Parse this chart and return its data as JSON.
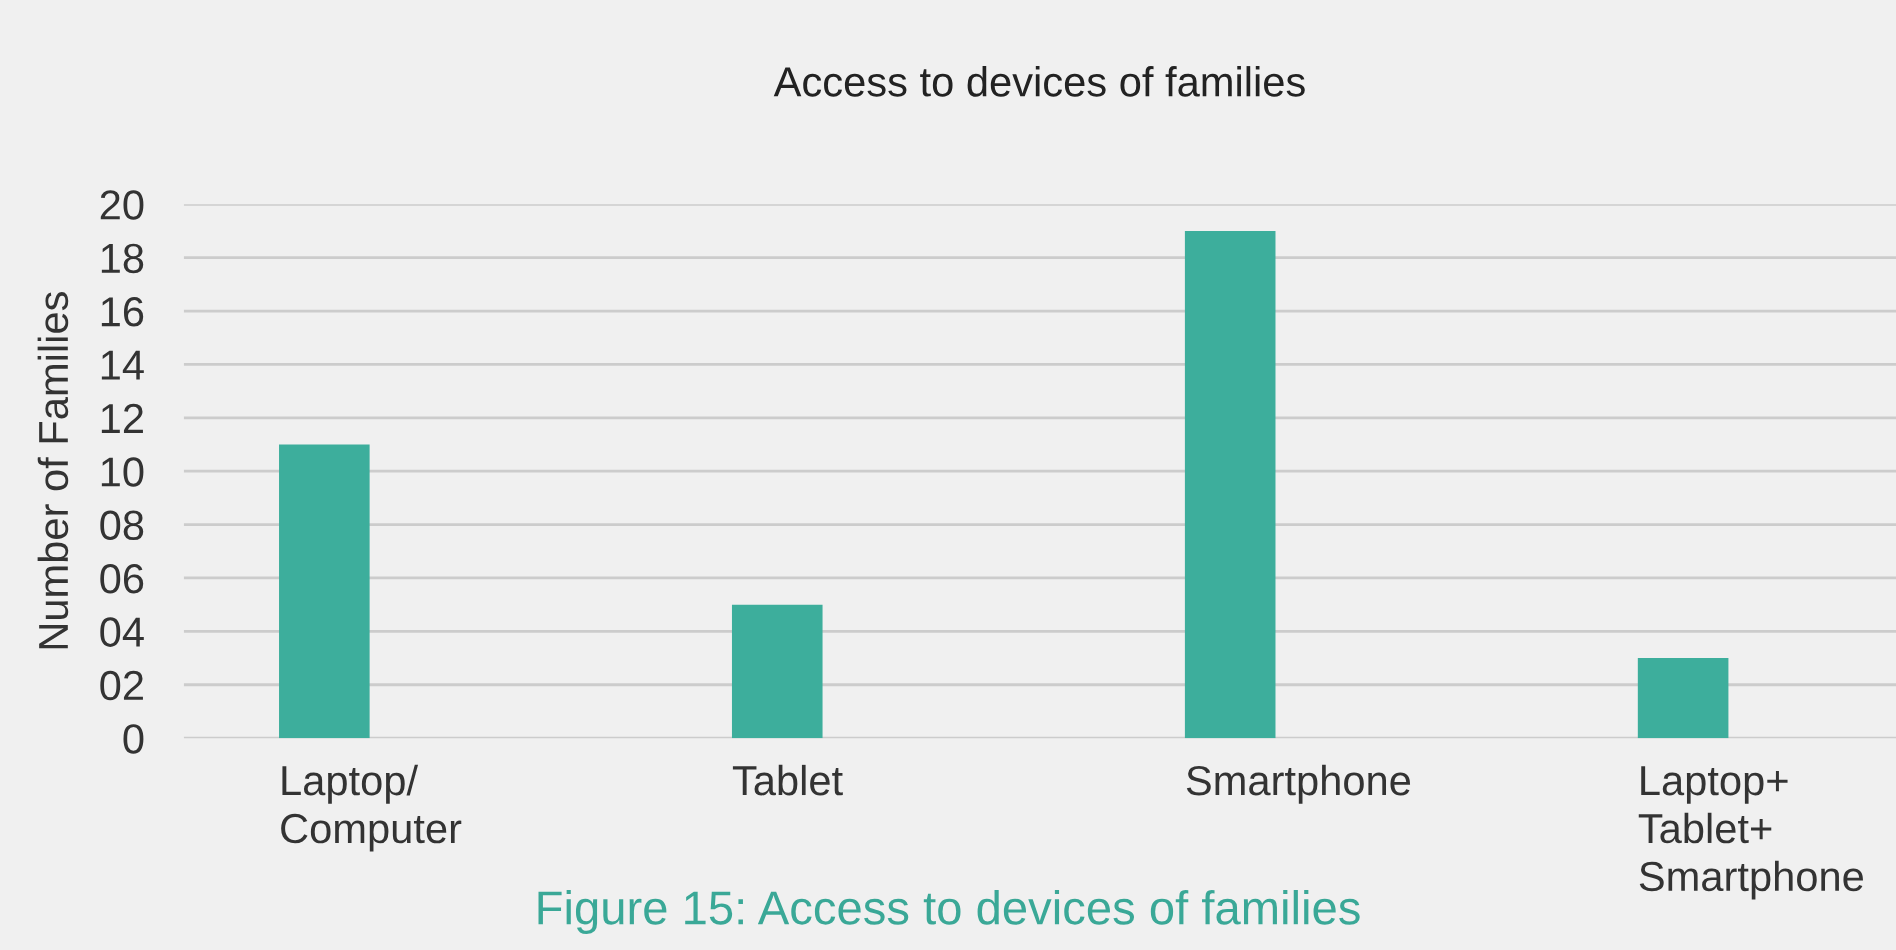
{
  "chart_data": {
    "type": "bar",
    "title": "Access to devices of families",
    "ylabel": "Number of Families",
    "categories": [
      "Laptop/\nComputer",
      "Tablet",
      "Smartphone",
      "Laptop+\nTablet+\nSmartphone"
    ],
    "values": [
      11,
      5,
      19,
      3
    ],
    "color": "#3dae9c",
    "ylim": [
      0,
      20
    ],
    "yticks": [
      0,
      {
        "value": 2,
        "label": "02"
      },
      {
        "value": 4,
        "label": "04"
      },
      {
        "value": 6,
        "label": "06"
      },
      {
        "value": 8,
        "label": "08"
      },
      10,
      12,
      14,
      16,
      18,
      20
    ],
    "grid": "y",
    "annotations": [
      "Figure 15: Access to devices of families"
    ]
  }
}
